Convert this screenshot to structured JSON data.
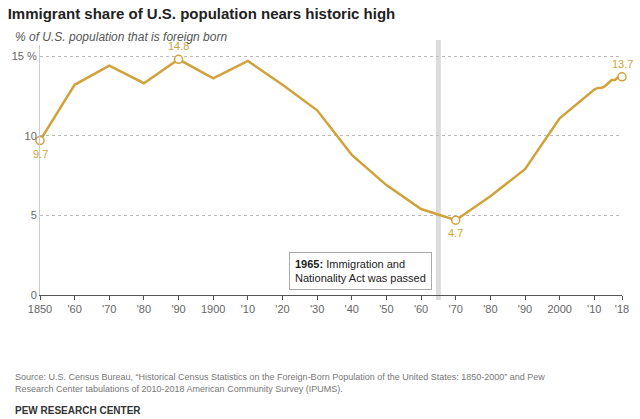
{
  "chart_data": {
    "type": "line",
    "title": "Immigrant share of U.S. population nears historic high",
    "subtitle": "% of U.S. population that is foreign born",
    "x": [
      1850,
      1860,
      1870,
      1880,
      1890,
      1900,
      1910,
      1920,
      1930,
      1940,
      1950,
      1960,
      1970,
      1980,
      1990,
      2000,
      2010,
      2011,
      2012,
      2013,
      2014,
      2015,
      2016,
      2017,
      2018
    ],
    "values": [
      9.7,
      13.2,
      14.4,
      13.3,
      14.8,
      13.6,
      14.7,
      13.2,
      11.6,
      8.8,
      6.9,
      5.4,
      4.7,
      6.2,
      7.9,
      11.1,
      12.9,
      13.0,
      13.0,
      13.1,
      13.3,
      13.5,
      13.5,
      13.7,
      13.7
    ],
    "color": "#d1a23a",
    "xlim": [
      1850,
      2018
    ],
    "xticks": [
      1850,
      {
        "value": 1860,
        "label": "'60"
      },
      {
        "value": 1870,
        "label": "'70"
      },
      {
        "value": 1880,
        "label": "'80"
      },
      {
        "value": 1890,
        "label": "'90"
      },
      1900,
      {
        "value": 1910,
        "label": "'10"
      },
      {
        "value": 1920,
        "label": "'20"
      },
      {
        "value": 1930,
        "label": "'30"
      },
      {
        "value": 1940,
        "label": "'40"
      },
      {
        "value": 1950,
        "label": "'50"
      },
      {
        "value": 1960,
        "label": "'60"
      },
      {
        "value": 1970,
        "label": "'70"
      },
      {
        "value": 1980,
        "label": "'80"
      },
      {
        "value": 1990,
        "label": "'90"
      },
      2000,
      {
        "value": 2010,
        "label": "'10"
      },
      {
        "value": 2018,
        "label": "'18"
      }
    ],
    "ylim": [
      0,
      15.7
    ],
    "yticks": [
      0,
      5,
      10,
      {
        "value": 15,
        "label": "15 %"
      }
    ],
    "grid": true,
    "marker": "circle",
    "highlight_x": [
      1850,
      1890,
      1970,
      2018
    ],
    "event": {
      "x": 1965,
      "label": "1965:",
      "text_lines": [
        "Immigration and",
        "Nationality Act was passed"
      ]
    },
    "source_lines": [
      "Source: U.S. Census Bureau, “Historical Census Statistics on the Foreign-Born Population of the United States: 1850-2000” and Pew",
      "Research Center tabulations of 2010-2018 American Community Survey (IPUMS)."
    ],
    "credit": "PEW RESEARCH CENTER"
  }
}
